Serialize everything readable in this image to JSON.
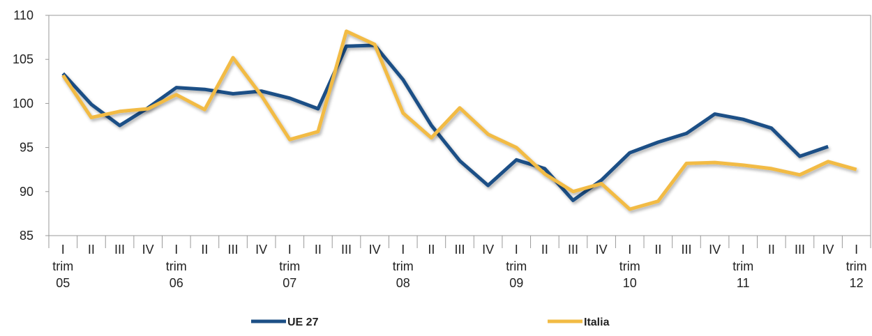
{
  "chart_data": {
    "type": "line",
    "categories": [
      "I\ntrim\n05",
      "II",
      "III",
      "IV",
      "I\ntrim\n06",
      "II",
      "III",
      "IV",
      "I\ntrim\n07",
      "II",
      "III",
      "IV",
      "I\ntrim\n08",
      "II",
      "III",
      "IV",
      "I\ntrim\n09",
      "II",
      "III",
      "IV",
      "I\ntrim\n10",
      "II",
      "III",
      "IV",
      "I\ntrim\n11",
      "II",
      "III",
      "IV",
      "I\ntrim\n12"
    ],
    "series": [
      {
        "name": "UE 27",
        "color": "#1c4f86",
        "values": [
          103.4,
          99.9,
          97.5,
          99.5,
          101.8,
          101.6,
          101.1,
          101.4,
          100.6,
          99.4,
          106.5,
          106.6,
          102.7,
          97.5,
          93.5,
          90.7,
          93.6,
          92.6,
          89.0,
          91.3,
          94.4,
          95.6,
          96.6,
          98.8,
          98.2,
          97.2,
          94.0,
          95.1,
          null
        ]
      },
      {
        "name": "Italia",
        "color": "#f2bb44",
        "values": [
          103.2,
          98.4,
          99.1,
          99.4,
          101.0,
          99.3,
          105.2,
          100.9,
          95.9,
          96.8,
          108.2,
          106.7,
          98.9,
          96.1,
          99.5,
          96.5,
          95.0,
          92.0,
          90.0,
          90.9,
          88.0,
          88.9,
          93.2,
          93.3,
          93.0,
          92.6,
          91.9,
          93.4,
          92.5
        ]
      }
    ],
    "ylim": [
      85,
      110
    ],
    "yticks": [
      85,
      90,
      95,
      100,
      105,
      110
    ],
    "grid": false,
    "legend": "bottom"
  }
}
